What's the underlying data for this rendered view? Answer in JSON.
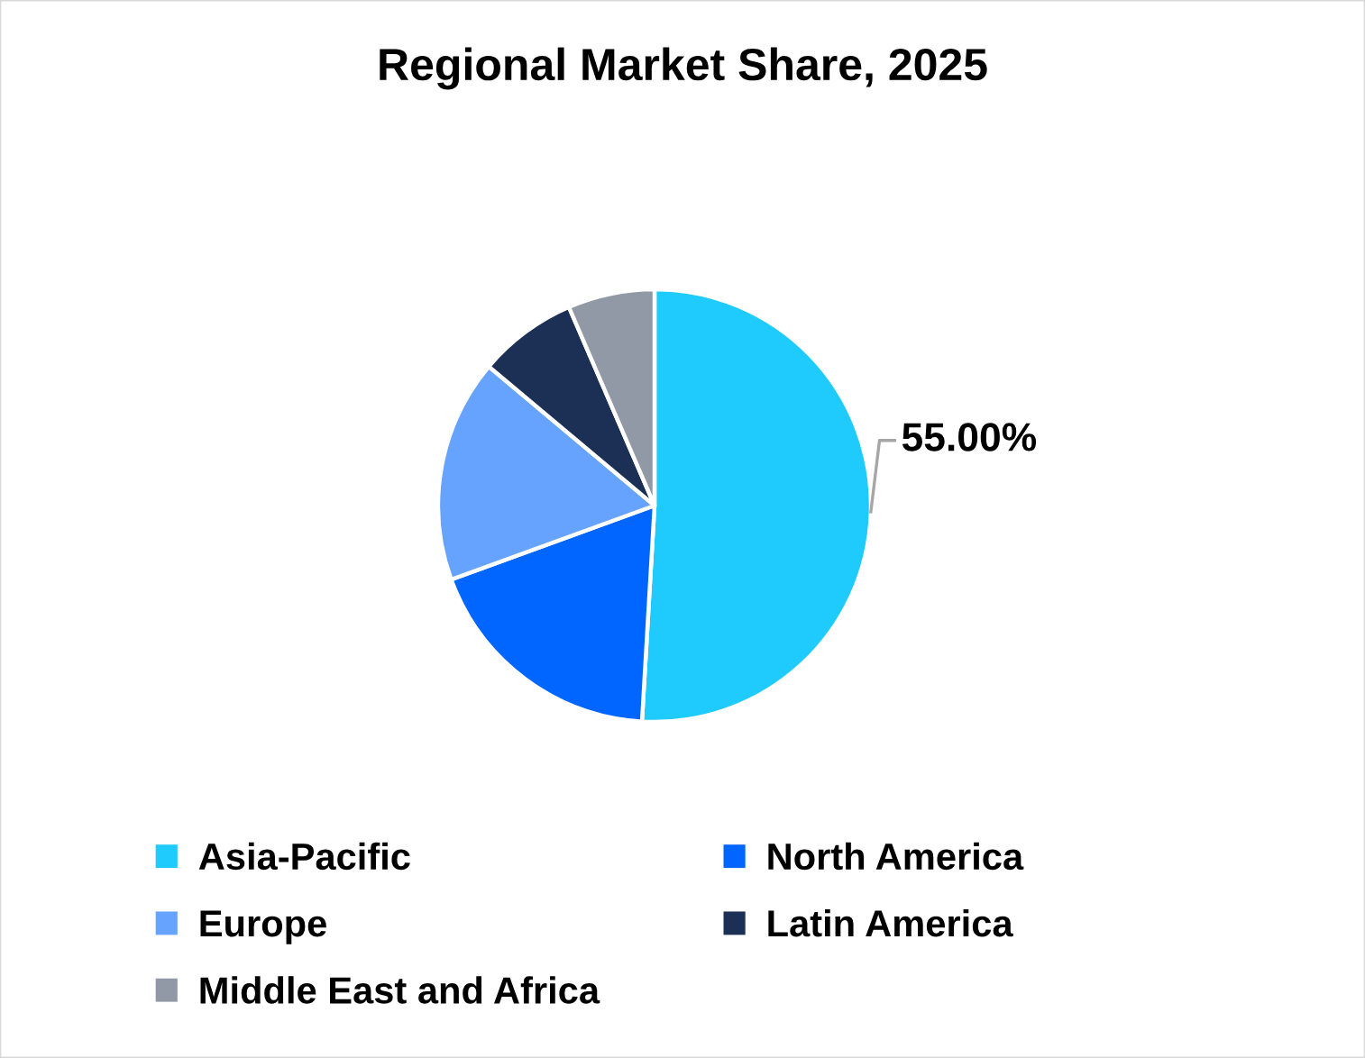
{
  "chart_data": {
    "type": "pie",
    "title": "Regional Market Share, 2025",
    "categories": [
      "Asia-Pacific",
      "North America",
      "Europe",
      "Latin America",
      "Middle East and Africa"
    ],
    "values": [
      55,
      20,
      18,
      8,
      7
    ],
    "colors": [
      "#1ecbfc",
      "#0066ff",
      "#66a3ff",
      "#1c2f54",
      "#9199a7"
    ],
    "value_labels": [
      "55.00%",
      null,
      null,
      null,
      null
    ],
    "legend": "bottom"
  }
}
